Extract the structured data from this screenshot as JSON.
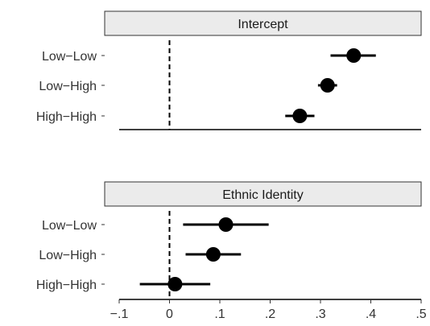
{
  "chart_data": {
    "type": "scatter",
    "subtype": "coefficient-plot-with-intervals",
    "reference_line": {
      "x": 0,
      "style": "dashed"
    },
    "xlim": [
      -0.1,
      0.5
    ],
    "x_ticks": [
      -0.1,
      0,
      0.1,
      0.2,
      0.3,
      0.4,
      0.5
    ],
    "x_tick_labels": [
      "−.1",
      "0",
      ".1",
      ".2",
      ".3",
      ".4",
      ".5"
    ],
    "categories": [
      "Low−Low",
      "Low−High",
      "High−High"
    ],
    "grid": false,
    "panels": [
      {
        "title": "Intercept",
        "points": [
          {
            "label": "Low−Low",
            "estimate": 0.366,
            "lower": 0.32,
            "upper": 0.41
          },
          {
            "label": "Low−High",
            "estimate": 0.314,
            "lower": 0.295,
            "upper": 0.333
          },
          {
            "label": "High−High",
            "estimate": 0.259,
            "lower": 0.23,
            "upper": 0.288
          }
        ]
      },
      {
        "title": "Ethnic Identity",
        "points": [
          {
            "label": "Low−Low",
            "estimate": 0.112,
            "lower": 0.027,
            "upper": 0.197
          },
          {
            "label": "Low−High",
            "estimate": 0.087,
            "lower": 0.032,
            "upper": 0.142
          },
          {
            "label": "High−High",
            "estimate": 0.011,
            "lower": -0.059,
            "upper": 0.081
          }
        ]
      }
    ]
  }
}
